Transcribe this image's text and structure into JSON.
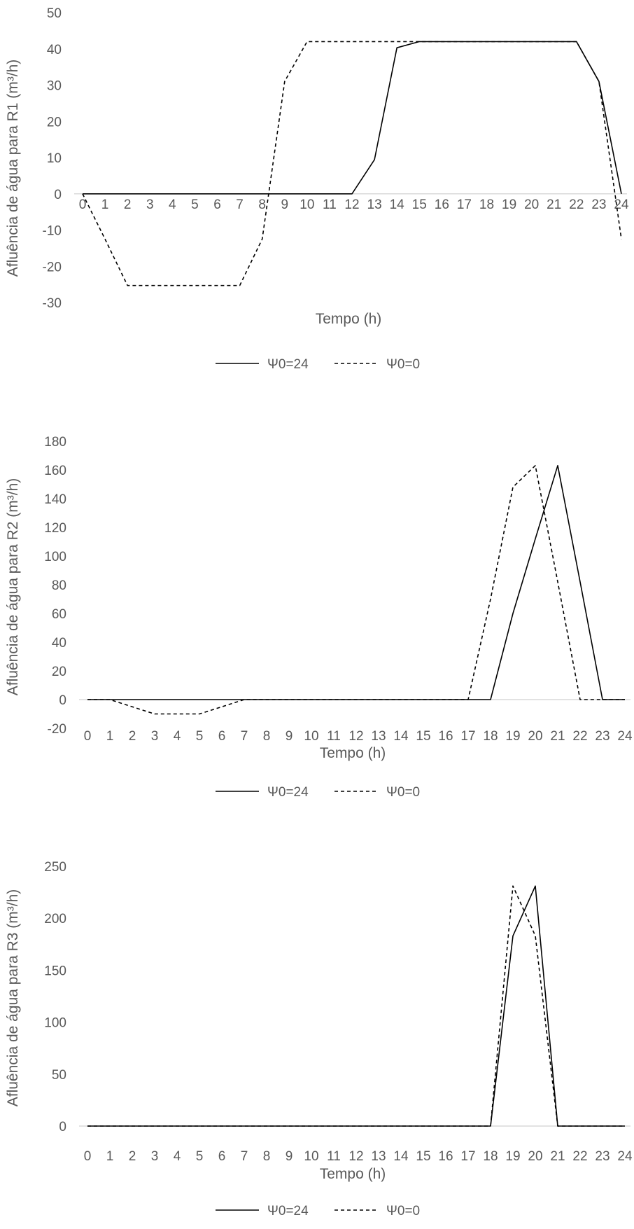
{
  "chart_data": [
    {
      "type": "line",
      "title": "",
      "xlabel": "Tempo (h)",
      "ylabel": "Afluência de água para R1 (m³/h)",
      "ylim": [
        -30,
        50
      ],
      "ystep": 10,
      "x": [
        0,
        1,
        2,
        3,
        4,
        5,
        6,
        7,
        8,
        9,
        10,
        11,
        12,
        13,
        14,
        15,
        16,
        17,
        18,
        19,
        20,
        21,
        22,
        23,
        24
      ],
      "grid": false,
      "legend_position": "bottom",
      "series": [
        {
          "name": "Ψ0=24",
          "style": "solid",
          "color": "#000000",
          "values": [
            0,
            0,
            0,
            0,
            0,
            0,
            0,
            0,
            0,
            0,
            0,
            0,
            0,
            9.4,
            40.3,
            42,
            42,
            42,
            42,
            42,
            42,
            42,
            42,
            31,
            0
          ]
        },
        {
          "name": "Ψ0=0",
          "style": "dashed",
          "color": "#000000",
          "values": [
            0,
            -12.5,
            -25.3,
            -25.3,
            -25.3,
            -25.3,
            -25.3,
            -25.3,
            -12.5,
            31,
            42,
            42,
            42,
            42,
            42,
            42,
            42,
            42,
            42,
            42,
            42,
            42,
            42,
            31,
            -12.5
          ]
        }
      ]
    },
    {
      "type": "line",
      "title": "",
      "xlabel": "Tempo (h)",
      "ylabel": "Afluência de água para R2 (m³/h)",
      "ylim": [
        -20,
        180
      ],
      "ystep": 20,
      "x": [
        0,
        1,
        2,
        3,
        4,
        5,
        6,
        7,
        8,
        9,
        10,
        11,
        12,
        13,
        14,
        15,
        16,
        17,
        18,
        19,
        20,
        21,
        22,
        23,
        24
      ],
      "grid": false,
      "legend_position": "bottom",
      "series": [
        {
          "name": "Ψ0=24",
          "style": "solid",
          "color": "#000000",
          "values": [
            0,
            0,
            0,
            0,
            0,
            0,
            0,
            0,
            0,
            0,
            0,
            0,
            0,
            0,
            0,
            0,
            0,
            0,
            0,
            60,
            112,
            163,
            82,
            0,
            0
          ]
        },
        {
          "name": "Ψ0=0",
          "style": "dashed",
          "color": "#000000",
          "values": [
            0,
            0,
            -5,
            -10,
            -10,
            -10,
            -5,
            0,
            0,
            0,
            0,
            0,
            0,
            0,
            0,
            0,
            0,
            0,
            70,
            148,
            163,
            82,
            0,
            0,
            0
          ]
        }
      ]
    },
    {
      "type": "line",
      "title": "",
      "xlabel": "Tempo (h)",
      "ylabel": "Afluência de água para R3 (m³/h)",
      "ylim": [
        0,
        250
      ],
      "ystep": 50,
      "x": [
        0,
        1,
        2,
        3,
        4,
        5,
        6,
        7,
        8,
        9,
        10,
        11,
        12,
        13,
        14,
        15,
        16,
        17,
        18,
        19,
        20,
        21,
        22,
        23,
        24
      ],
      "grid": false,
      "legend_position": "bottom",
      "series": [
        {
          "name": "Ψ0=24",
          "style": "solid",
          "color": "#000000",
          "values": [
            0,
            0,
            0,
            0,
            0,
            0,
            0,
            0,
            0,
            0,
            0,
            0,
            0,
            0,
            0,
            0,
            0,
            0,
            0,
            183,
            231,
            0,
            0,
            0,
            0
          ]
        },
        {
          "name": "Ψ0=0",
          "style": "dashed",
          "color": "#000000",
          "values": [
            0,
            0,
            0,
            0,
            0,
            0,
            0,
            0,
            0,
            0,
            0,
            0,
            0,
            0,
            0,
            0,
            0,
            0,
            0,
            231,
            183,
            0,
            0,
            0,
            0
          ]
        }
      ]
    }
  ]
}
